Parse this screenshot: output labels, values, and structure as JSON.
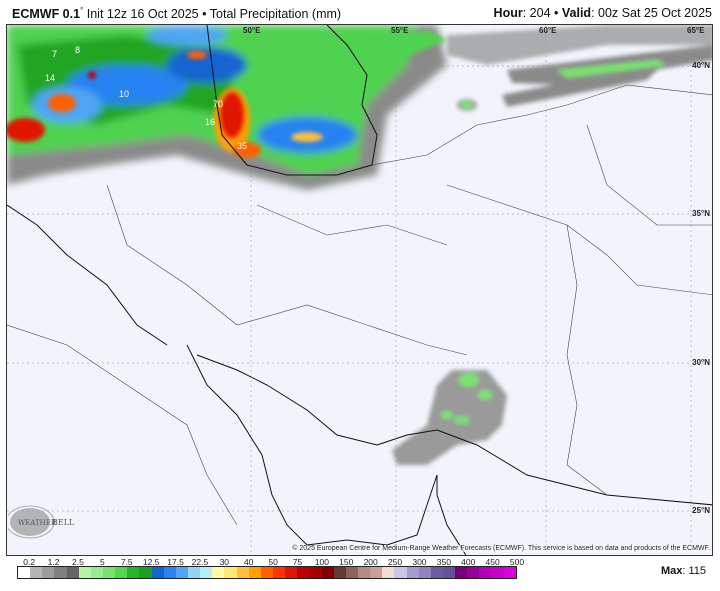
{
  "header": {
    "model": "ECMWF 0.1",
    "degree": "°",
    "init": "Init 12z 16 Oct 2025",
    "separator": "•",
    "product": "Total Precipitation (mm)",
    "hour_label": "Hour",
    "hour_value": ": 204",
    "valid_label": "Valid",
    "valid_value": ": 00z Sat 25 Oct 2025"
  },
  "map": {
    "longitude_labels": [
      "50°E",
      "55°E",
      "60°E",
      "65°E"
    ],
    "latitude_labels": [
      "40°N",
      "35°N",
      "30°N",
      "25°N"
    ],
    "contour_labels": [
      "14",
      "8",
      "7",
      "10",
      "70",
      "35",
      "16"
    ],
    "logo": "WeatherBELL",
    "credit": "© 2025 European Centre for Medium-Range Weather Forecasts (ECMWF). This service is based on data and products of the ECMWF."
  },
  "legend": {
    "ticks": [
      "0.2",
      "1.2",
      "2.5",
      "5",
      "7.5",
      "12.5",
      "17.5",
      "22.5",
      "30",
      "40",
      "50",
      "75",
      "100",
      "150",
      "200",
      "250",
      "300",
      "350",
      "400",
      "450",
      "500"
    ],
    "colors": [
      "#ffffff",
      "#b4b4b4",
      "#9c9c9c",
      "#808080",
      "#646464",
      "#b4f5a4",
      "#96ee8c",
      "#78e46e",
      "#50d850",
      "#28b428",
      "#1ea01e",
      "#1464d2",
      "#2882f0",
      "#50a5f5",
      "#96d2fa",
      "#b4f0fa",
      "#fffaaa",
      "#ffe878",
      "#ffc03c",
      "#ffa000",
      "#ff6000",
      "#ff3200",
      "#e11400",
      "#c00000",
      "#a50000",
      "#870000",
      "#643b32",
      "#8c645a",
      "#b48c82",
      "#c8a096",
      "#f0dcd2",
      "#c8c8e6",
      "#a89bd2",
      "#9682be",
      "#6e5aa0",
      "#64509b",
      "#780078",
      "#960096",
      "#b400b4",
      "#c800c8",
      "#dc00dc"
    ],
    "max_label": "Max",
    "max_value": ": 115"
  }
}
